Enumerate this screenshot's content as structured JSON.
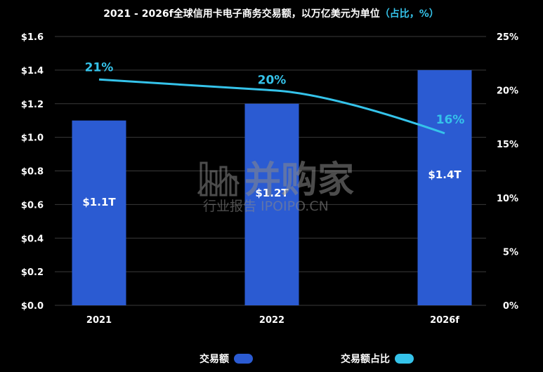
{
  "watermark": {
    "brand": "并购家",
    "sub": "行业报告 IPOIPO.CN"
  },
  "colors": {
    "bar": "#2b5bd2",
    "line": "#35c3ea",
    "background": "#000000",
    "text": "#ffffff"
  },
  "chart_data": {
    "type": "bar",
    "title": "2021 - 2026f全球信用卡电子商务交易额，以万亿美元为单位",
    "title_suffix": "（占比，%）",
    "categories": [
      "2021",
      "2022",
      "2026f"
    ],
    "y_ticks": [
      "$0.0",
      "$0.2",
      "$0.4",
      "$0.6",
      "$0.8",
      "$1.0",
      "$1.2",
      "$1.4",
      "$1.6"
    ],
    "y2_ticks": [
      "0%",
      "5%",
      "10%",
      "15%",
      "20%",
      "25%"
    ],
    "ylim": [
      0,
      1.6
    ],
    "y2lim": [
      0,
      25
    ],
    "series": [
      {
        "name": "交易额",
        "type": "bar",
        "values": [
          1.1,
          1.2,
          1.4
        ],
        "labels": [
          "$1.1T",
          "$1.2T",
          "$1.4T"
        ]
      },
      {
        "name": "交易额占比",
        "type": "line",
        "axis": "right",
        "values": [
          21,
          20,
          16
        ],
        "labels": [
          "21%",
          "20%",
          "16%"
        ]
      }
    ],
    "grid": true,
    "legend_position": "bottom"
  }
}
